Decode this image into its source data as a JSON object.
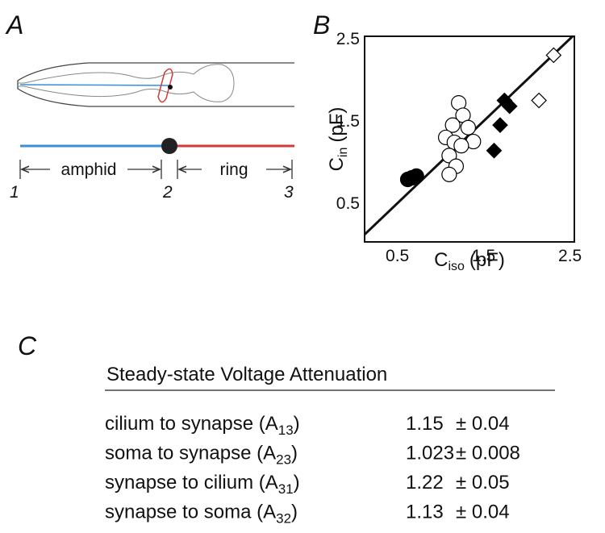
{
  "panel_a": {
    "label": "A",
    "segments": [
      "amphid",
      "ring"
    ],
    "points": [
      "1",
      "2",
      "3"
    ]
  },
  "chart_data": {
    "type": "scatter",
    "label": "B",
    "xlabel": {
      "main": "C",
      "sub": "iso",
      "unit": "(pF)"
    },
    "ylabel": {
      "main": "C",
      "sub": "in",
      "unit": "(pF)"
    },
    "xlim": [
      0.12,
      2.55
    ],
    "ylim": [
      0.03,
      2.53
    ],
    "xticks": [
      0.5,
      1.5,
      2.5
    ],
    "yticks": [
      0.5,
      1.5,
      2.5
    ],
    "identity_line": true,
    "series": [
      {
        "marker": "circle",
        "filled": false,
        "color": "#000000",
        "x": [
          1.21,
          1.26,
          1.14,
          1.32,
          1.06,
          1.38,
          1.16,
          1.24,
          1.1,
          1.18,
          1.1
        ],
        "values": [
          1.72,
          1.57,
          1.45,
          1.42,
          1.3,
          1.25,
          1.24,
          1.2,
          1.08,
          0.95,
          0.85
        ]
      },
      {
        "marker": "circle",
        "filled": true,
        "color": "#000000",
        "x": [
          0.62,
          0.72,
          0.67
        ],
        "values": [
          0.79,
          0.83,
          0.81
        ]
      },
      {
        "marker": "diamond",
        "filled": true,
        "color": "#000000",
        "x": [
          1.74,
          1.8,
          1.69,
          1.62
        ],
        "values": [
          1.75,
          1.68,
          1.45,
          1.14
        ]
      },
      {
        "marker": "diamond",
        "filled": false,
        "color": "#000000",
        "x": [
          2.31,
          2.14
        ],
        "values": [
          2.3,
          1.75
        ]
      }
    ]
  },
  "panel_c": {
    "label": "C",
    "title": "Steady-state Voltage Attenuation",
    "rows": [
      {
        "label": "cilium to synapse (A",
        "sub": "13",
        "close": ")",
        "value": "1.15",
        "error": "± 0.04"
      },
      {
        "label": "soma to synapse (A",
        "sub": "23",
        "close": ")",
        "value": "1.023",
        "error": "± 0.008"
      },
      {
        "label": "synapse to cilium (A",
        "sub": "31",
        "close": ")",
        "value": "1.22",
        "error": "± 0.05"
      },
      {
        "label": "synapse to soma (A",
        "sub": "32",
        "close": ")",
        "value": "1.13",
        "error": "± 0.04"
      }
    ]
  }
}
